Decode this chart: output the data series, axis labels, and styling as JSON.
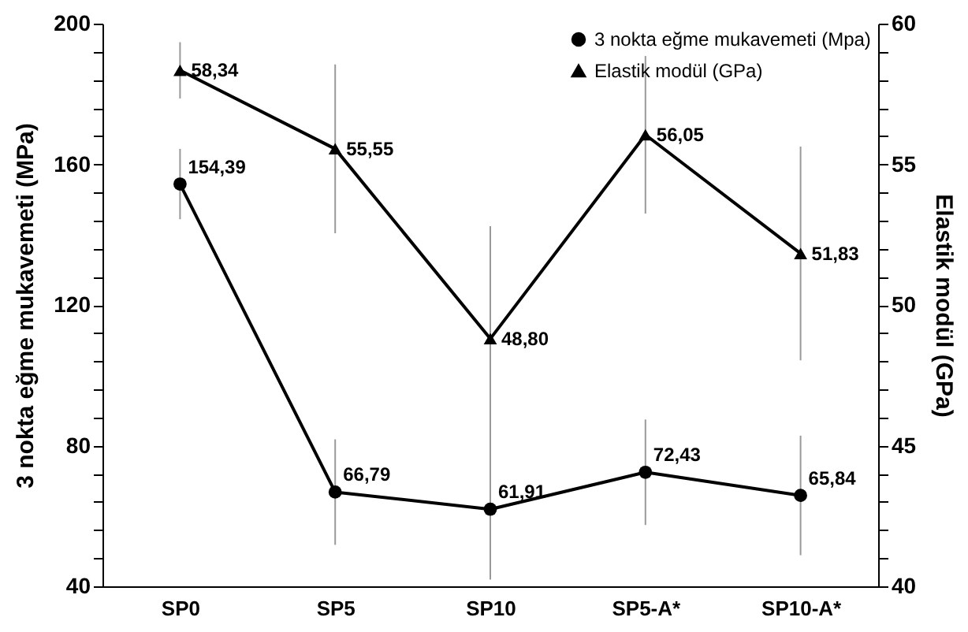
{
  "chart_data": {
    "type": "line",
    "ylabel": "3 nokta eğme mukavemeti (MPa)",
    "y2label": "Elastik modül (GPa)",
    "categories": [
      "SP0",
      "SP5",
      "SP10",
      "SP5-A*",
      "SP10-A*"
    ],
    "series": [
      {
        "name": "3 nokta eğme mukavemeti (Mpa)",
        "color": "#000000",
        "marker": "circle",
        "values": [
          154.39,
          66.79,
          61.91,
          72.43,
          65.84
        ],
        "errors": [
          10,
          15,
          20,
          15,
          17
        ],
        "value_labels": [
          "154,39",
          "66,79",
          "61,91",
          "72,43",
          "65,84"
        ]
      },
      {
        "name": "Elastik modül (GPa)",
        "color": "#000000",
        "marker": "triangle",
        "axis": "y2",
        "values": [
          58.34,
          55.55,
          48.8,
          56.05,
          51.83
        ],
        "errors": [
          1,
          3,
          4,
          2.8,
          3.8
        ],
        "value_labels": [
          "58,34",
          "55,55",
          "48,80",
          "56,05",
          "51,83"
        ]
      }
    ],
    "ylim": [
      40,
      200
    ],
    "yticks": [
      40,
      {
        "value": 48,
        "label": null
      },
      {
        "value": 56,
        "label": null
      },
      {
        "value": 64,
        "label": null
      },
      {
        "value": 72,
        "label": null
      },
      80,
      {
        "value": 88,
        "label": null
      },
      {
        "value": 96,
        "label": null
      },
      {
        "value": 104,
        "label": null
      },
      {
        "value": 112,
        "label": null
      },
      120,
      {
        "value": 128,
        "label": null
      },
      {
        "value": 136,
        "label": null
      },
      {
        "value": 144,
        "label": null
      },
      {
        "value": 152,
        "label": null
      },
      160,
      {
        "value": 168,
        "label": null
      },
      {
        "value": 176,
        "label": null
      },
      {
        "value": 184,
        "label": null
      },
      {
        "value": 192,
        "label": null
      },
      200
    ],
    "y2lim": [
      40,
      60
    ],
    "y2ticks": [
      40,
      {
        "value": 41,
        "label": null
      },
      {
        "value": 42,
        "label": null
      },
      {
        "value": 43,
        "label": null
      },
      {
        "value": 44,
        "label": null
      },
      45,
      {
        "value": 46,
        "label": null
      },
      {
        "value": 47,
        "label": null
      },
      {
        "value": 48,
        "label": null
      },
      {
        "value": 49,
        "label": null
      },
      50,
      {
        "value": 51,
        "label": null
      },
      {
        "value": 52,
        "label": null
      },
      {
        "value": 53,
        "label": null
      },
      {
        "value": 54,
        "label": null
      },
      55,
      {
        "value": 56,
        "label": null
      },
      {
        "value": 57,
        "label": null
      },
      {
        "value": 58,
        "label": null
      },
      {
        "value": 59,
        "label": null
      },
      60
    ],
    "legend": "top right",
    "grid": false,
    "line_style": "solid"
  }
}
